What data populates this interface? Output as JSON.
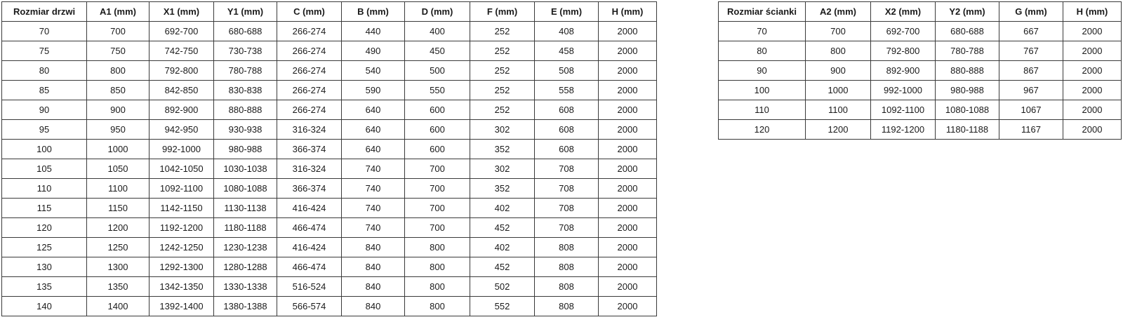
{
  "colors": {
    "background": "#ffffff",
    "border": "#3a3a3a",
    "text": "#1a1a1a"
  },
  "tables": [
    {
      "name": "door-size-table",
      "headers": [
        "Rozmiar drzwi",
        "A1 (mm)",
        "X1 (mm)",
        "Y1 (mm)",
        "C (mm)",
        "B (mm)",
        "D (mm)",
        "F (mm)",
        "E (mm)",
        "H (mm)"
      ],
      "rows": [
        [
          "70",
          "700",
          "692-700",
          "680-688",
          "266-274",
          "440",
          "400",
          "252",
          "408",
          "2000"
        ],
        [
          "75",
          "750",
          "742-750",
          "730-738",
          "266-274",
          "490",
          "450",
          "252",
          "458",
          "2000"
        ],
        [
          "80",
          "800",
          "792-800",
          "780-788",
          "266-274",
          "540",
          "500",
          "252",
          "508",
          "2000"
        ],
        [
          "85",
          "850",
          "842-850",
          "830-838",
          "266-274",
          "590",
          "550",
          "252",
          "558",
          "2000"
        ],
        [
          "90",
          "900",
          "892-900",
          "880-888",
          "266-274",
          "640",
          "600",
          "252",
          "608",
          "2000"
        ],
        [
          "95",
          "950",
          "942-950",
          "930-938",
          "316-324",
          "640",
          "600",
          "302",
          "608",
          "2000"
        ],
        [
          "100",
          "1000",
          "992-1000",
          "980-988",
          "366-374",
          "640",
          "600",
          "352",
          "608",
          "2000"
        ],
        [
          "105",
          "1050",
          "1042-1050",
          "1030-1038",
          "316-324",
          "740",
          "700",
          "302",
          "708",
          "2000"
        ],
        [
          "110",
          "1100",
          "1092-1100",
          "1080-1088",
          "366-374",
          "740",
          "700",
          "352",
          "708",
          "2000"
        ],
        [
          "115",
          "1150",
          "1142-1150",
          "1130-1138",
          "416-424",
          "740",
          "700",
          "402",
          "708",
          "2000"
        ],
        [
          "120",
          "1200",
          "1192-1200",
          "1180-1188",
          "466-474",
          "740",
          "700",
          "452",
          "708",
          "2000"
        ],
        [
          "125",
          "1250",
          "1242-1250",
          "1230-1238",
          "416-424",
          "840",
          "800",
          "402",
          "808",
          "2000"
        ],
        [
          "130",
          "1300",
          "1292-1300",
          "1280-1288",
          "466-474",
          "840",
          "800",
          "452",
          "808",
          "2000"
        ],
        [
          "135",
          "1350",
          "1342-1350",
          "1330-1338",
          "516-524",
          "840",
          "800",
          "502",
          "808",
          "2000"
        ],
        [
          "140",
          "1400",
          "1392-1400",
          "1380-1388",
          "566-574",
          "840",
          "800",
          "552",
          "808",
          "2000"
        ]
      ]
    },
    {
      "name": "wall-size-table",
      "headers": [
        "Rozmiar ścianki",
        "A2 (mm)",
        "X2 (mm)",
        "Y2 (mm)",
        "G (mm)",
        "H (mm)"
      ],
      "rows": [
        [
          "70",
          "700",
          "692-700",
          "680-688",
          "667",
          "2000"
        ],
        [
          "80",
          "800",
          "792-800",
          "780-788",
          "767",
          "2000"
        ],
        [
          "90",
          "900",
          "892-900",
          "880-888",
          "867",
          "2000"
        ],
        [
          "100",
          "1000",
          "992-1000",
          "980-988",
          "967",
          "2000"
        ],
        [
          "110",
          "1100",
          "1092-1100",
          "1080-1088",
          "1067",
          "2000"
        ],
        [
          "120",
          "1200",
          "1192-1200",
          "1180-1188",
          "1167",
          "2000"
        ]
      ]
    }
  ]
}
